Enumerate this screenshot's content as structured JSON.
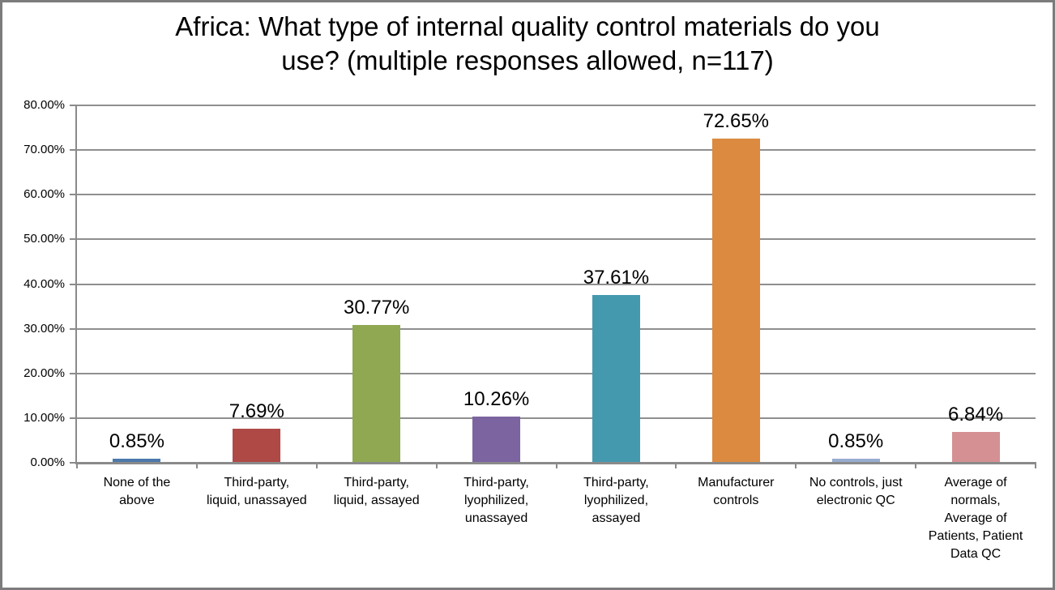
{
  "chart_data": {
    "type": "bar",
    "title": "Africa: What type of internal quality control materials do you use? (multiple responses allowed, n=117)",
    "title_display": "Africa: What type of internal quality control materials do you\nuse? (multiple responses allowed, n=117)",
    "categories": [
      "None of the above",
      "Third-party, liquid, unassayed",
      "Third-party, liquid, assayed",
      "Third-party, lyophilized, unassayed",
      "Third-party, lyophilized, assayed",
      "Manufacturer controls",
      "No controls, just electronic QC",
      "Average of normals, Average of Patients, Patient Data QC"
    ],
    "categories_display": [
      "None of the\nabove",
      "Third-party,\nliquid, unassayed",
      "Third-party,\nliquid, assayed",
      "Third-party,\nlyophilized,\nunassayed",
      "Third-party,\nlyophilized,\nassayed",
      "Manufacturer\ncontrols",
      "No controls, just\nelectronic QC",
      "Average of\nnormals,\nAverage of\nPatients, Patient\nData QC"
    ],
    "values": [
      0.85,
      7.69,
      30.77,
      10.26,
      37.61,
      72.65,
      0.85,
      6.84
    ],
    "data_labels": [
      "0.85%",
      "7.69%",
      "30.77%",
      "10.26%",
      "37.61%",
      "72.65%",
      "0.85%",
      "6.84%"
    ],
    "bar_colors": [
      "#4C79AC",
      "#AF4946",
      "#8FA851",
      "#7C64A0",
      "#4599AF",
      "#DB8A3F",
      "#97ACD0",
      "#D49092"
    ],
    "ylim": [
      0,
      80
    ],
    "ytick_values": [
      0,
      10,
      20,
      30,
      40,
      50,
      60,
      70,
      80
    ],
    "ytick_labels": [
      "0.00%",
      "10.00%",
      "20.00%",
      "30.00%",
      "40.00%",
      "50.00%",
      "60.00%",
      "70.00%",
      "80.00%"
    ],
    "xlabel": "",
    "ylabel": "",
    "legend": "none",
    "grid": true,
    "colors": {
      "gridline": "#8F8F8F",
      "axis": "#8A8A8A",
      "frame_border": "#7C7C7C",
      "background": "#FFFFFF",
      "text": "#000000"
    }
  }
}
